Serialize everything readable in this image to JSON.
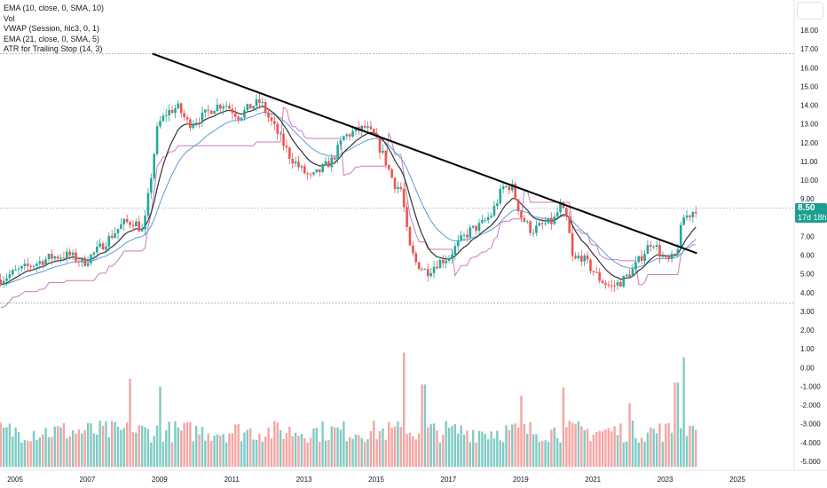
{
  "legend": [
    "EMA (10, close, 0, SMA, 10)",
    "Vol",
    "VWAP (Session, hlc3, 0, 1)",
    "EMA (21, close, 0, SMA, 5)",
    "ATR for Trailing Stop (14, 3)"
  ],
  "price_badge": {
    "price": "8.50",
    "countdown": "17d 18h"
  },
  "colors": {
    "up": "#26a69a",
    "down": "#ef5350",
    "vol_up": "#80cbc4",
    "vol_down": "#f5a5a3",
    "ema10": "#333333",
    "ema21": "#5b9bd5",
    "atr_stop": "#c77dba",
    "trendline": "#000000",
    "dotted": "#9598a1",
    "badge": "#1c9e91"
  },
  "chart_data": {
    "type": "candlestick",
    "title": "",
    "x_tick_labels": [
      "2005",
      "2007",
      "2009",
      "2011",
      "2013",
      "2015",
      "2017",
      "2019",
      "2021",
      "2023",
      "2025"
    ],
    "y_tick_labels": [
      "18.00",
      "17.00",
      "16.00",
      "15.00",
      "14.00",
      "13.00",
      "12.00",
      "11.00",
      "10.00",
      "9.00",
      "8.00",
      "7.00",
      "6.00",
      "5.00",
      "4.00",
      "3.00",
      "2.00",
      "1.00",
      "0.00",
      "-1.000",
      "-2.000",
      "-3.000",
      "-4.000",
      "-5.000"
    ],
    "ylim": [
      -5.3,
      18.5
    ],
    "last_price": 8.5,
    "price_anchors": [
      [
        2004.6,
        4.7
      ],
      [
        2005.0,
        5.1
      ],
      [
        2005.5,
        5.5
      ],
      [
        2006.0,
        5.9
      ],
      [
        2006.5,
        6.0
      ],
      [
        2006.9,
        5.6
      ],
      [
        2007.3,
        6.3
      ],
      [
        2007.7,
        7.1
      ],
      [
        2008.0,
        7.7
      ],
      [
        2008.3,
        7.8
      ],
      [
        2008.55,
        7.2
      ],
      [
        2008.75,
        10.0
      ],
      [
        2008.95,
        12.9
      ],
      [
        2009.2,
        13.6
      ],
      [
        2009.5,
        13.9
      ],
      [
        2009.8,
        13.0
      ],
      [
        2010.2,
        13.4
      ],
      [
        2010.5,
        13.9
      ],
      [
        2010.8,
        14.1
      ],
      [
        2011.2,
        13.4
      ],
      [
        2011.5,
        13.9
      ],
      [
        2011.8,
        14.2
      ],
      [
        2012.0,
        13.4
      ],
      [
        2012.3,
        12.4
      ],
      [
        2012.6,
        11.3
      ],
      [
        2012.9,
        10.6
      ],
      [
        2013.2,
        10.1
      ],
      [
        2013.5,
        10.6
      ],
      [
        2013.8,
        11.1
      ],
      [
        2014.1,
        12.3
      ],
      [
        2014.4,
        12.6
      ],
      [
        2014.7,
        12.8
      ],
      [
        2014.95,
        12.3
      ],
      [
        2015.2,
        11.3
      ],
      [
        2015.5,
        9.8
      ],
      [
        2015.7,
        9.5
      ],
      [
        2015.9,
        6.5
      ],
      [
        2016.1,
        5.6
      ],
      [
        2016.4,
        5.1
      ],
      [
        2016.7,
        5.6
      ],
      [
        2017.0,
        5.9
      ],
      [
        2017.3,
        6.7
      ],
      [
        2017.6,
        7.3
      ],
      [
        2017.9,
        7.6
      ],
      [
        2018.2,
        8.2
      ],
      [
        2018.5,
        9.6
      ],
      [
        2018.75,
        9.7
      ],
      [
        2019.0,
        8.1
      ],
      [
        2019.3,
        7.3
      ],
      [
        2019.6,
        7.6
      ],
      [
        2019.9,
        7.8
      ],
      [
        2020.1,
        8.6
      ],
      [
        2020.3,
        7.8
      ],
      [
        2020.45,
        5.6
      ],
      [
        2020.65,
        6.0
      ],
      [
        2020.9,
        5.4
      ],
      [
        2021.2,
        4.7
      ],
      [
        2021.5,
        4.3
      ],
      [
        2021.8,
        4.6
      ],
      [
        2022.1,
        5.2
      ],
      [
        2022.4,
        6.1
      ],
      [
        2022.65,
        6.8
      ],
      [
        2022.85,
        6.1
      ],
      [
        2023.05,
        5.6
      ],
      [
        2023.3,
        6.0
      ],
      [
        2023.5,
        8.0
      ],
      [
        2023.7,
        8.2
      ],
      [
        2023.85,
        8.5
      ]
    ],
    "trendline": {
      "start": {
        "x": 2008.8,
        "y": 16.75
      },
      "end": {
        "x": 2023.88,
        "y": 6.1
      }
    },
    "dotted_levels": [
      16.75,
      8.5,
      3.45
    ],
    "volume_panel": {
      "axis_min": -5.3,
      "spikes": [
        [
          2008.2,
          -0.6
        ],
        [
          2009.0,
          -1.0
        ],
        [
          2015.75,
          0.8
        ],
        [
          2016.3,
          -0.9
        ],
        [
          2019.0,
          -1.5
        ],
        [
          2020.2,
          -1.05
        ],
        [
          2022.0,
          -1.9
        ],
        [
          2023.3,
          -0.8
        ],
        [
          2023.5,
          0.55
        ],
        [
          2023.72,
          -3.1
        ]
      ]
    }
  }
}
